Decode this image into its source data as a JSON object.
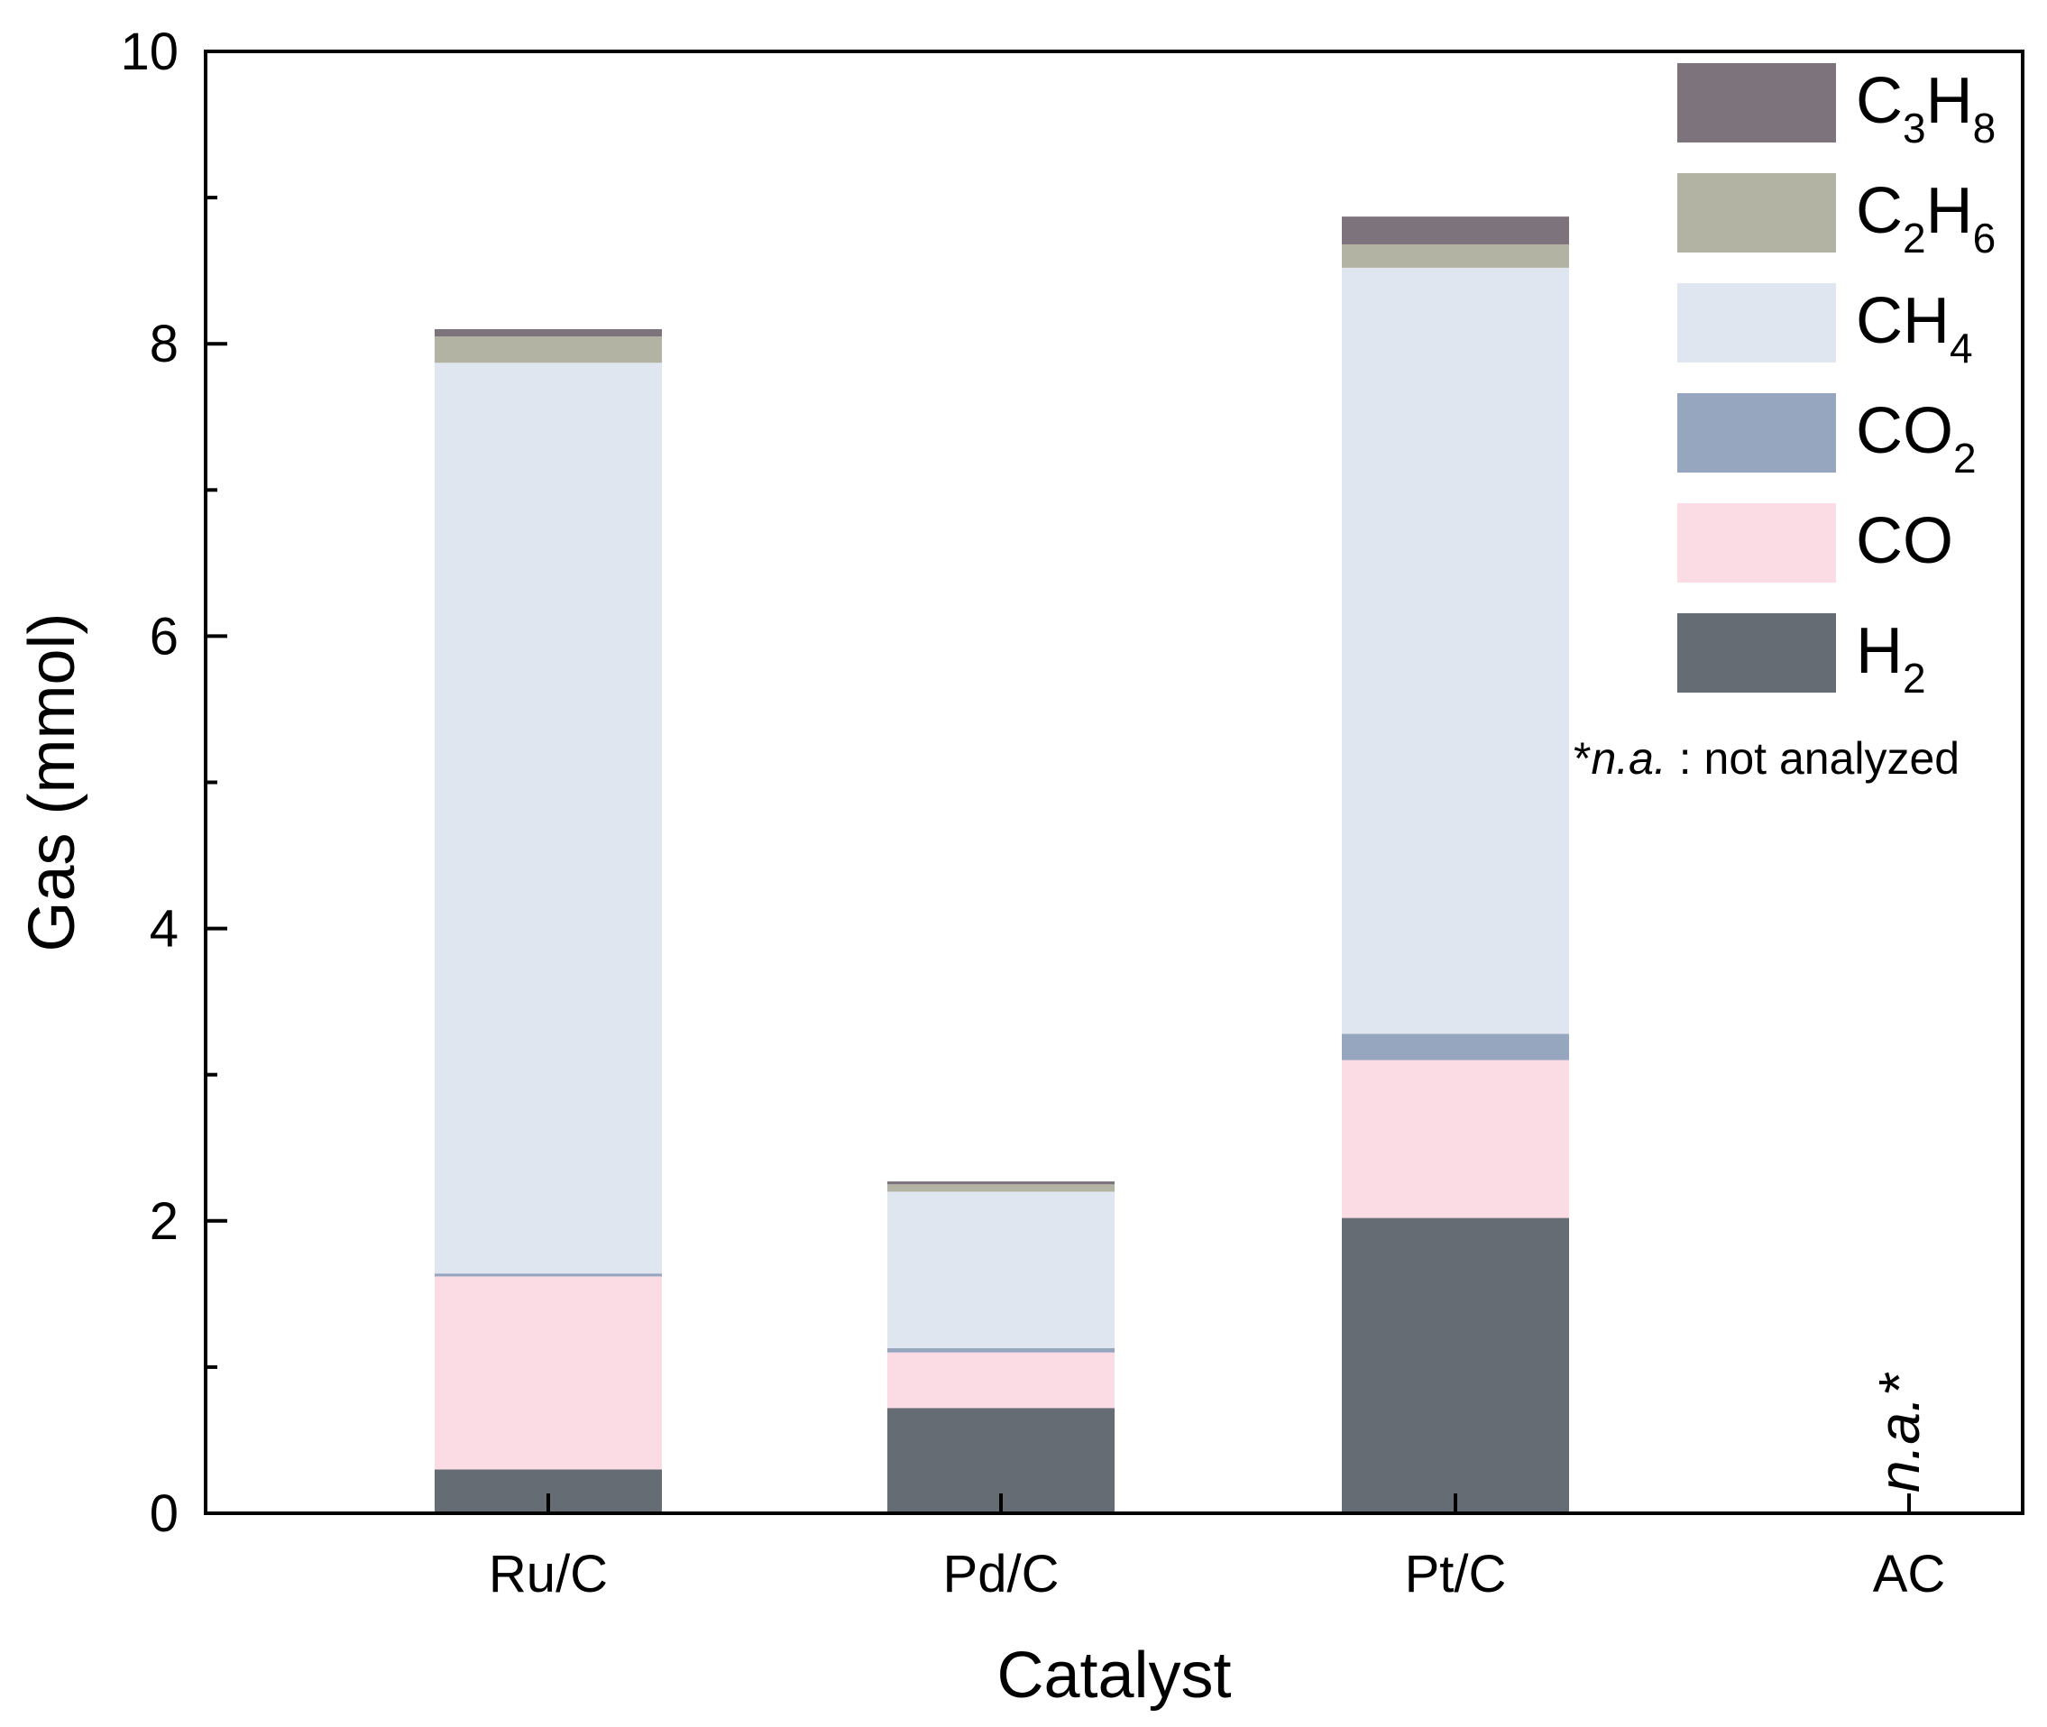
{
  "chart_data": {
    "type": "bar",
    "stacked": true,
    "title": "",
    "xlabel": "Catalyst",
    "ylabel": "Gas (mmol)",
    "ylim": [
      0,
      10
    ],
    "yticks_major": [
      0,
      2,
      4,
      6,
      8,
      10
    ],
    "yticks_minor": [
      1,
      3,
      5,
      7,
      9
    ],
    "categories": [
      "Ru/C",
      "Pd/C",
      "Pt/C",
      "AC"
    ],
    "series": [
      {
        "name": "H2",
        "label_main": "H",
        "label_sub": "2",
        "label_main2": "",
        "label_sub2": "",
        "color": "#656c74",
        "values": [
          0.3,
          0.72,
          2.02,
          null
        ]
      },
      {
        "name": "CO",
        "label_main": "CO",
        "label_sub": "",
        "label_main2": "",
        "label_sub2": "",
        "color": "#fcdce4",
        "values": [
          1.32,
          0.38,
          1.08,
          null
        ]
      },
      {
        "name": "CO2",
        "label_main": "CO",
        "label_sub": "2",
        "label_main2": "",
        "label_sub2": "",
        "color": "#97a6bf",
        "values": [
          0.02,
          0.03,
          0.18,
          null
        ]
      },
      {
        "name": "CH4",
        "label_main": "CH",
        "label_sub": "4",
        "label_main2": "",
        "label_sub2": "",
        "color": "#dfe6ef",
        "values": [
          6.23,
          1.07,
          5.24,
          null
        ]
      },
      {
        "name": "C2H6",
        "label_main": "C",
        "label_sub": "2",
        "label_main2": "H",
        "label_sub2": "6",
        "color": "#b3b3a3",
        "values": [
          0.18,
          0.05,
          0.16,
          null
        ]
      },
      {
        "name": "C3H8",
        "label_main": "C",
        "label_sub": "3",
        "label_main2": "H",
        "label_sub2": "8",
        "color": "#7c737c",
        "values": [
          0.05,
          0.02,
          0.19,
          null
        ]
      }
    ],
    "legend_position": "top-right",
    "legend_order": [
      "C3H8",
      "C2H6",
      "CH4",
      "CO2",
      "CO",
      "H2"
    ],
    "note": {
      "star": "*",
      "italic": "n.a.",
      "rest": " : not analyzed"
    },
    "annotations": [
      {
        "category": "AC",
        "text": "n.a.*"
      }
    ]
  }
}
